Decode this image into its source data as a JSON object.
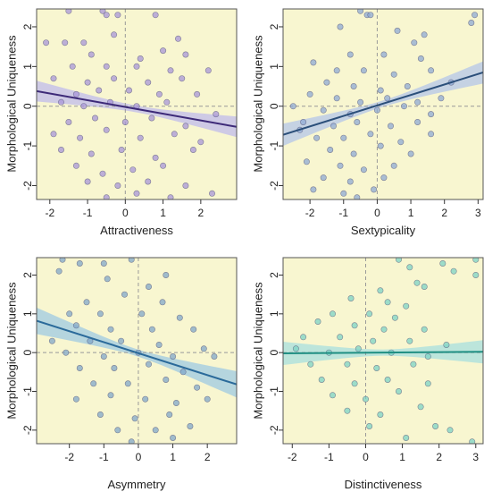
{
  "chart_data": [
    {
      "type": "scatter",
      "xlabel": "Attractiveness",
      "ylabel": "Morphological Uniqueness",
      "xlim": [
        -2.35,
        2.95
      ],
      "ylim": [
        -2.35,
        2.45
      ],
      "xticks": [
        -2,
        -1,
        0,
        1,
        2
      ],
      "yticks": [
        -2,
        -1,
        0,
        1,
        2
      ],
      "point_color": "#a896d8",
      "line_color": "#3d2a78",
      "band_color": "#c7c2e9",
      "fit": {
        "x": [
          -2.35,
          2.95
        ],
        "y": [
          0.38,
          -0.52
        ]
      },
      "band_halfwidth": {
        "edge": 0.26,
        "center": 0.085
      },
      "reference_lines": {
        "x": 0,
        "y": 0
      },
      "points": [
        [
          -1.5,
          2.4
        ],
        [
          -0.6,
          2.4
        ],
        [
          -0.5,
          2.3
        ],
        [
          -0.2,
          2.3
        ],
        [
          0.8,
          2.3
        ],
        [
          -2.1,
          1.6
        ],
        [
          -1.6,
          1.6
        ],
        [
          -1.1,
          1.6
        ],
        [
          -0.3,
          1.8
        ],
        [
          1.4,
          1.7
        ],
        [
          -0.9,
          1.3
        ],
        [
          0.4,
          1.2
        ],
        [
          1.0,
          1.4
        ],
        [
          1.6,
          1.3
        ],
        [
          -1.4,
          1.0
        ],
        [
          -0.5,
          1.0
        ],
        [
          0.3,
          1.0
        ],
        [
          1.2,
          0.9
        ],
        [
          2.2,
          0.9
        ],
        [
          -1.9,
          0.7
        ],
        [
          -1.0,
          0.6
        ],
        [
          -0.3,
          0.7
        ],
        [
          0.6,
          0.6
        ],
        [
          1.5,
          0.7
        ],
        [
          -1.3,
          0.3
        ],
        [
          -0.7,
          0.4
        ],
        [
          0.1,
          0.4
        ],
        [
          0.9,
          0.3
        ],
        [
          1.9,
          0.3
        ],
        [
          -1.7,
          0.1
        ],
        [
          -1.1,
          0.0
        ],
        [
          -0.4,
          0.1
        ],
        [
          0.3,
          0.0
        ],
        [
          1.1,
          0.1
        ],
        [
          2.4,
          -0.2
        ],
        [
          -1.5,
          -0.4
        ],
        [
          -0.8,
          -0.3
        ],
        [
          0.0,
          -0.4
        ],
        [
          0.7,
          -0.3
        ],
        [
          1.6,
          -0.5
        ],
        [
          -1.9,
          -0.7
        ],
        [
          -1.2,
          -0.8
        ],
        [
          -0.5,
          -0.6
        ],
        [
          0.4,
          -0.8
        ],
        [
          1.3,
          -0.7
        ],
        [
          2.0,
          -0.9
        ],
        [
          -1.7,
          -1.1
        ],
        [
          -0.9,
          -1.2
        ],
        [
          -0.1,
          -1.1
        ],
        [
          0.8,
          -1.3
        ],
        [
          1.8,
          -1.1
        ],
        [
          -1.3,
          -1.5
        ],
        [
          -0.6,
          -1.7
        ],
        [
          0.2,
          -1.6
        ],
        [
          1.0,
          -1.5
        ],
        [
          -1.0,
          -1.9
        ],
        [
          -0.2,
          -2.0
        ],
        [
          0.6,
          -1.9
        ],
        [
          1.6,
          -2.0
        ],
        [
          -0.5,
          -2.3
        ],
        [
          0.3,
          -2.2
        ],
        [
          1.2,
          -2.3
        ],
        [
          2.3,
          -2.2
        ]
      ]
    },
    {
      "type": "scatter",
      "xlabel": "Sextypicality",
      "ylabel": "Morphological Uniqueness",
      "xlim": [
        -2.8,
        3.15
      ],
      "ylim": [
        -2.35,
        2.45
      ],
      "xticks": [
        -2,
        -1,
        0,
        1,
        2,
        3
      ],
      "yticks": [
        -2,
        -1,
        0,
        1,
        2
      ],
      "point_color": "#8fa9d4",
      "line_color": "#2b4f7a",
      "band_color": "#bccbe6",
      "fit": {
        "x": [
          -2.8,
          3.15
        ],
        "y": [
          -0.72,
          0.85
        ]
      },
      "band_halfwidth": {
        "edge": 0.28,
        "center": 0.08
      },
      "reference_lines": {
        "x": 0,
        "y": 0
      },
      "points": [
        [
          -0.5,
          2.4
        ],
        [
          -0.3,
          2.3
        ],
        [
          -0.2,
          2.3
        ],
        [
          2.9,
          2.3
        ],
        [
          2.8,
          2.1
        ],
        [
          -1.1,
          2.0
        ],
        [
          0.6,
          1.9
        ],
        [
          1.4,
          1.8
        ],
        [
          1.1,
          1.6
        ],
        [
          -0.8,
          1.3
        ],
        [
          0.2,
          1.3
        ],
        [
          1.3,
          1.2
        ],
        [
          -1.9,
          1.1
        ],
        [
          -1.2,
          0.9
        ],
        [
          -0.4,
          0.9
        ],
        [
          0.5,
          0.8
        ],
        [
          1.6,
          0.9
        ],
        [
          -1.5,
          0.6
        ],
        [
          -0.7,
          0.5
        ],
        [
          0.1,
          0.4
        ],
        [
          0.9,
          0.5
        ],
        [
          2.2,
          0.6
        ],
        [
          -2.0,
          0.3
        ],
        [
          -1.2,
          0.2
        ],
        [
          -0.5,
          0.1
        ],
        [
          0.3,
          0.2
        ],
        [
          1.2,
          0.1
        ],
        [
          1.9,
          0.2
        ],
        [
          -2.5,
          0.0
        ],
        [
          -1.6,
          -0.1
        ],
        [
          -0.8,
          -0.2
        ],
        [
          0.0,
          -0.1
        ],
        [
          0.8,
          0.0
        ],
        [
          1.6,
          -0.2
        ],
        [
          -2.2,
          -0.4
        ],
        [
          -1.3,
          -0.5
        ],
        [
          -0.6,
          -0.4
        ],
        [
          0.4,
          -0.5
        ],
        [
          1.2,
          -0.4
        ],
        [
          -1.8,
          -0.8
        ],
        [
          -1.0,
          -0.8
        ],
        [
          -0.2,
          -0.7
        ],
        [
          0.7,
          -0.9
        ],
        [
          1.6,
          -0.7
        ],
        [
          -1.4,
          -1.1
        ],
        [
          -0.7,
          -1.2
        ],
        [
          0.1,
          -1.0
        ],
        [
          1.0,
          -1.2
        ],
        [
          -2.1,
          -1.4
        ],
        [
          -1.1,
          -1.5
        ],
        [
          -0.4,
          -1.6
        ],
        [
          0.5,
          -1.5
        ],
        [
          -1.6,
          -1.8
        ],
        [
          -0.8,
          -1.9
        ],
        [
          0.2,
          -1.8
        ],
        [
          -1.9,
          -2.1
        ],
        [
          -1.0,
          -2.2
        ],
        [
          -0.1,
          -2.1
        ],
        [
          -0.6,
          -2.3
        ],
        [
          -2.3,
          -0.6
        ]
      ]
    },
    {
      "type": "scatter",
      "xlabel": "Asymmetry",
      "ylabel": "Morphological Uniqueness",
      "xlim": [
        -2.95,
        2.85
      ],
      "ylim": [
        -2.35,
        2.45
      ],
      "xticks": [
        -2,
        -1,
        0,
        1,
        2
      ],
      "yticks": [
        -2,
        -1,
        0,
        1,
        2
      ],
      "point_color": "#82a7c9",
      "line_color": "#2a6a9a",
      "band_color": "#a9cfe0",
      "fit": {
        "x": [
          -2.95,
          2.85
        ],
        "y": [
          0.82,
          -0.82
        ]
      },
      "band_halfwidth": {
        "edge": 0.34,
        "center": 0.09
      },
      "reference_lines": {
        "x": 0,
        "y": 0
      },
      "points": [
        [
          -2.2,
          2.4
        ],
        [
          -0.2,
          2.4
        ],
        [
          -1.7,
          2.3
        ],
        [
          -1.0,
          2.3
        ],
        [
          -2.3,
          2.1
        ],
        [
          0.8,
          2.0
        ],
        [
          -0.9,
          1.9
        ],
        [
          0.3,
          1.7
        ],
        [
          -0.4,
          1.5
        ],
        [
          -1.5,
          1.3
        ],
        [
          0.7,
          1.3
        ],
        [
          -2.0,
          1.0
        ],
        [
          -1.1,
          1.0
        ],
        [
          0.1,
          1.0
        ],
        [
          1.2,
          0.9
        ],
        [
          -1.8,
          0.7
        ],
        [
          -0.8,
          0.6
        ],
        [
          0.4,
          0.6
        ],
        [
          1.6,
          0.6
        ],
        [
          -2.5,
          0.3
        ],
        [
          -1.4,
          0.3
        ],
        [
          -0.5,
          0.3
        ],
        [
          0.6,
          0.2
        ],
        [
          1.9,
          0.1
        ],
        [
          -2.1,
          0.0
        ],
        [
          -1.0,
          -0.1
        ],
        [
          0.0,
          0.0
        ],
        [
          1.0,
          -0.1
        ],
        [
          2.2,
          -0.1
        ],
        [
          -1.7,
          -0.4
        ],
        [
          -0.7,
          -0.4
        ],
        [
          0.3,
          -0.3
        ],
        [
          1.3,
          -0.5
        ],
        [
          -1.3,
          -0.8
        ],
        [
          -0.3,
          -0.8
        ],
        [
          0.8,
          -0.7
        ],
        [
          1.7,
          -0.9
        ],
        [
          -1.8,
          -1.2
        ],
        [
          -0.8,
          -1.1
        ],
        [
          0.2,
          -1.2
        ],
        [
          1.1,
          -1.3
        ],
        [
          2.0,
          -1.2
        ],
        [
          -1.1,
          -1.6
        ],
        [
          -0.1,
          -1.7
        ],
        [
          0.9,
          -1.6
        ],
        [
          -0.6,
          -2.0
        ],
        [
          0.5,
          -2.0
        ],
        [
          1.5,
          -1.9
        ],
        [
          -0.2,
          -2.3
        ],
        [
          1.0,
          -2.2
        ]
      ]
    },
    {
      "type": "scatter",
      "xlabel": "Distinctiveness",
      "ylabel": "Morphological Uniqueness",
      "xlim": [
        -2.25,
        3.2
      ],
      "ylim": [
        -2.35,
        2.45
      ],
      "xticks": [
        -2,
        -1,
        0,
        1,
        2,
        3
      ],
      "yticks": [
        -2,
        -1,
        0,
        1,
        2
      ],
      "point_color": "#7dd3c6",
      "line_color": "#1f8f83",
      "band_color": "#b2e2dd",
      "fit": {
        "x": [
          -2.25,
          3.2
        ],
        "y": [
          -0.02,
          0.02
        ]
      },
      "band_halfwidth": {
        "edge": 0.3,
        "center": 0.08
      },
      "reference_lines": {
        "x": 0,
        "y": 0
      },
      "points": [
        [
          0.9,
          2.4
        ],
        [
          2.1,
          2.3
        ],
        [
          3.0,
          2.4
        ],
        [
          1.2,
          2.2
        ],
        [
          2.4,
          2.1
        ],
        [
          3.0,
          2.0
        ],
        [
          1.4,
          1.8
        ],
        [
          0.4,
          1.6
        ],
        [
          1.6,
          1.7
        ],
        [
          -0.4,
          1.4
        ],
        [
          0.6,
          1.3
        ],
        [
          1.1,
          1.2
        ],
        [
          -0.9,
          1.0
        ],
        [
          0.1,
          1.0
        ],
        [
          0.8,
          0.9
        ],
        [
          -1.3,
          0.8
        ],
        [
          -0.3,
          0.7
        ],
        [
          0.5,
          0.6
        ],
        [
          1.6,
          0.6
        ],
        [
          -1.7,
          0.4
        ],
        [
          -0.7,
          0.4
        ],
        [
          0.2,
          0.3
        ],
        [
          1.2,
          0.3
        ],
        [
          2.2,
          0.2
        ],
        [
          -1.9,
          0.1
        ],
        [
          -1.0,
          0.0
        ],
        [
          -0.2,
          0.1
        ],
        [
          0.7,
          0.0
        ],
        [
          1.7,
          -0.1
        ],
        [
          -1.5,
          -0.3
        ],
        [
          -0.5,
          -0.3
        ],
        [
          0.3,
          -0.4
        ],
        [
          1.3,
          -0.3
        ],
        [
          -1.2,
          -0.7
        ],
        [
          -0.3,
          -0.8
        ],
        [
          0.6,
          -0.7
        ],
        [
          1.7,
          -0.8
        ],
        [
          -0.9,
          -1.1
        ],
        [
          0.0,
          -1.2
        ],
        [
          0.9,
          -1.0
        ],
        [
          -0.5,
          -1.5
        ],
        [
          0.4,
          -1.6
        ],
        [
          1.5,
          -1.4
        ],
        [
          0.1,
          -1.9
        ],
        [
          1.9,
          -1.9
        ],
        [
          2.3,
          -2.0
        ],
        [
          1.1,
          -2.2
        ],
        [
          2.9,
          -2.3
        ]
      ]
    }
  ]
}
